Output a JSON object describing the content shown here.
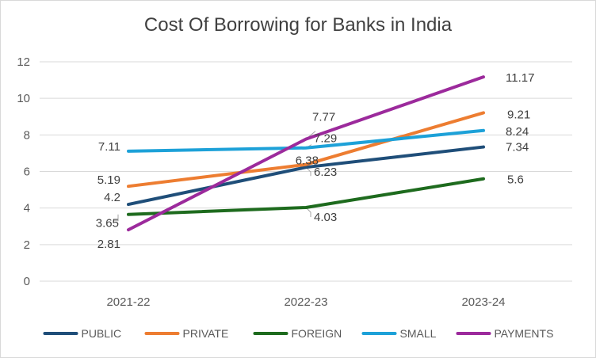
{
  "chart_data": {
    "type": "line",
    "title": "Cost Of Borrowing for Banks in India",
    "categories": [
      "2021-22",
      "2022-23",
      "2023-24"
    ],
    "ylim": [
      0,
      12
    ],
    "yticks": [
      0,
      2,
      4,
      6,
      8,
      10,
      12
    ],
    "ytick_labels": [
      "0",
      "2",
      "4",
      "6",
      "8",
      "10",
      "12"
    ],
    "grid": true,
    "legend_position": "bottom",
    "series": [
      {
        "name": "PUBLIC",
        "color": "#1f4e79",
        "values": [
          4.2,
          6.23,
          7.34
        ],
        "labels": [
          "4.2",
          "6.23",
          "7.34"
        ]
      },
      {
        "name": "PRIVATE",
        "color": "#ed7d31",
        "values": [
          5.19,
          6.38,
          9.21
        ],
        "labels": [
          "5.19",
          "6.38",
          "9.21"
        ]
      },
      {
        "name": "FOREIGN",
        "color": "#1e6b1e",
        "values": [
          3.65,
          4.03,
          5.6
        ],
        "labels": [
          "3.65",
          "4.03",
          "5.6"
        ]
      },
      {
        "name": "SMALL",
        "color": "#1da1d8",
        "values": [
          7.11,
          7.29,
          8.24
        ],
        "labels": [
          "7.11",
          "7.29",
          "8.24"
        ]
      },
      {
        "name": "PAYMENTS",
        "color": "#9c2a9c",
        "values": [
          2.81,
          7.77,
          11.17
        ],
        "labels": [
          "2.81",
          "7.77",
          "11.17"
        ]
      }
    ]
  }
}
